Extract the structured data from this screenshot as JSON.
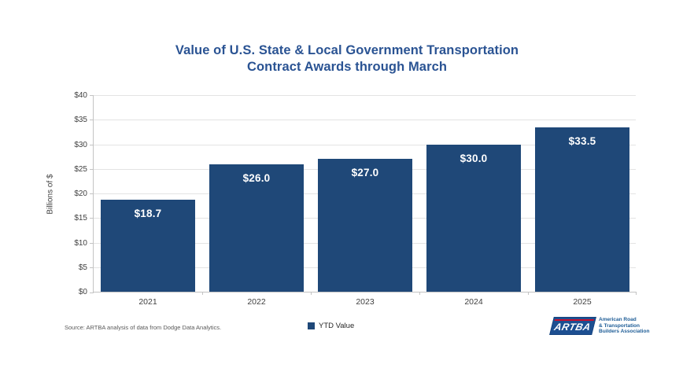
{
  "title": {
    "line1": "Value of U.S. State & Local Government Transportation",
    "line2": "Contract Awards through March"
  },
  "chart_data": {
    "type": "bar",
    "title": "Value of U.S. State & Local Government Transportation Contract Awards through March",
    "categories": [
      "2021",
      "2022",
      "2023",
      "2024",
      "2025"
    ],
    "values": [
      18.7,
      26.0,
      27.0,
      30.0,
      33.5
    ],
    "bar_labels": [
      "$18.7",
      "$26.0",
      "$27.0",
      "$30.0",
      "$33.5"
    ],
    "series_name": "YTD Value",
    "xlabel": "",
    "ylabel": "Billions of $",
    "ylim": [
      0,
      40
    ],
    "yticks": [
      0,
      5,
      10,
      15,
      20,
      25,
      30,
      35,
      40
    ],
    "ytick_labels": [
      "$0",
      "$5",
      "$10",
      "$15",
      "$20",
      "$25",
      "$30",
      "$35",
      "$40"
    ],
    "grid": true,
    "legend_position": "bottom",
    "bar_color": "#1F4878"
  },
  "footer": {
    "source": "Source: ARTBA analysis of data from Dodge Data Analytics.",
    "legend_label": "YTD Value"
  },
  "logo": {
    "acronym": "ARTBA",
    "line1": "American Road",
    "line2": "& Transportation",
    "line3": "Builders Association"
  },
  "colors": {
    "bar": "#1F4878",
    "title_blue": "#2A5393",
    "axis_gray": "#C3C3C3",
    "gridline_gray": "#E3E3E3",
    "bar_label_text": "#FFFFFF",
    "logo_blue": "#1D4F91",
    "logo_red": "#C8102E"
  }
}
